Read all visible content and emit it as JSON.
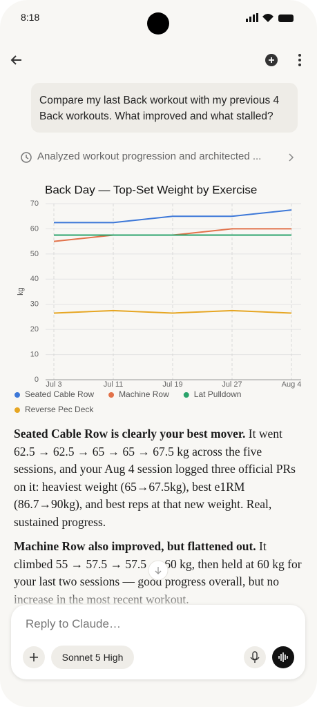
{
  "status": {
    "time": "8:18"
  },
  "user_message": "Compare my last Back workout with my previous 4 Back workouts. What improved and what stalled?",
  "thinking_summary": "Analyzed workout progression and architected ...",
  "chart_data": {
    "type": "line",
    "title": "Back Day — Top-Set Weight by Exercise",
    "y_label": "kg",
    "categories": [
      "Jul 3",
      "Jul 11",
      "Jul 19",
      "Jul 27",
      "Aug 4"
    ],
    "series": [
      {
        "name": "Seated Cable Row",
        "color": "#3d78d8",
        "values": [
          62.5,
          62.5,
          65,
          65,
          67.5
        ]
      },
      {
        "name": "Machine Row",
        "color": "#e2724a",
        "values": [
          55,
          57.5,
          57.5,
          60,
          60
        ]
      },
      {
        "name": "Lat Pulldown",
        "color": "#2aa36b",
        "values": [
          57.5,
          57.5,
          57.5,
          57.5,
          57.5
        ]
      },
      {
        "name": "Reverse Pec Deck",
        "color": "#e6a623",
        "values": [
          26.5,
          27.5,
          26.5,
          27.5,
          26.5
        ]
      }
    ],
    "ylim": [
      0,
      70
    ],
    "yticks": [
      0,
      10,
      20,
      30,
      40,
      50,
      60,
      70
    ],
    "grid": true,
    "legend": "bottom"
  },
  "response": [
    {
      "lead": "Seated Cable Row is clearly your best mover.",
      "body": " It went 62.5 → 62.5 → 65 → 65 → 67.5 kg across the five sessions, and your Aug 4 session logged three official PRs on it: heaviest weight (65→67.5kg), best e1RM (86.7→90kg), and best reps at that new weight. Real, sustained progress."
    },
    {
      "lead": "Machine Row also improved, but flattened out.",
      "body": " It climbed 55 → 57.5 → 57.5 → 60 kg, then held at 60 kg for your last two sessions — good progress overall, but no increase in the most recent workout."
    }
  ],
  "composer": {
    "placeholder": "Reply to Claude…",
    "model": "Sonnet 5 High"
  }
}
